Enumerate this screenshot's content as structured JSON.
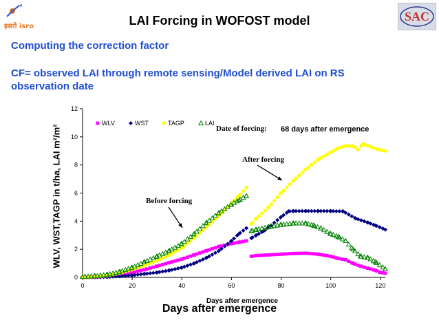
{
  "header": {
    "title": "LAI Forcing in WOFOST model",
    "left_logo_text": "इसरो isro",
    "right_logo_icon": "sac-logo-icon"
  },
  "body": {
    "subtitle": "Computing the correction factor",
    "formula": "CF= observed LAI through remote sensing/Model derived LAI on RS observation date"
  },
  "chart_data": {
    "type": "scatter",
    "xlim": [
      0,
      122
    ],
    "ylim": [
      0,
      12
    ],
    "x_ticks": [
      "0",
      "20",
      "40",
      "60",
      "80",
      "100",
      "120"
    ],
    "y_ticks": [
      "0",
      "2",
      "4",
      "6",
      "8",
      "10",
      "12"
    ],
    "xlabel": "Days after emergence",
    "xlabel_large": "Days after emergence",
    "ylabel": "WLV, WST,TAGP in t/ha, LAI m²/m²",
    "grid": false,
    "legend_placement": "top-left",
    "annotations": {
      "date_of_forcing_label": "Date of forcing:",
      "date_of_forcing_value": "68 days after emergence",
      "after_forcing": "After forcing",
      "before_forcing": "Before forcing"
    },
    "series": [
      {
        "name": "WLV",
        "marker": "square",
        "color": "#ff00ff",
        "x": [
          0,
          5,
          10,
          15,
          20,
          25,
          30,
          35,
          40,
          45,
          50,
          55,
          60,
          63,
          66,
          68,
          70,
          75,
          80,
          85,
          90,
          95,
          100,
          103,
          106,
          109,
          112,
          115,
          118,
          120,
          122
        ],
        "y": [
          0,
          0.03,
          0.08,
          0.2,
          0.35,
          0.55,
          0.8,
          1.05,
          1.3,
          1.6,
          1.9,
          2.2,
          2.4,
          2.5,
          2.6,
          1.5,
          1.55,
          1.6,
          1.65,
          1.7,
          1.72,
          1.65,
          1.5,
          1.35,
          1.25,
          1.0,
          0.8,
          0.65,
          0.5,
          0.35,
          0.3
        ]
      },
      {
        "name": "WST",
        "marker": "diamond",
        "color": "#000080",
        "x": [
          0,
          5,
          10,
          15,
          20,
          25,
          30,
          35,
          40,
          45,
          50,
          55,
          60,
          63,
          66,
          68,
          70,
          73,
          76,
          80,
          83,
          85,
          90,
          95,
          100,
          105,
          110,
          115,
          118,
          122
        ],
        "y": [
          0,
          0.01,
          0.03,
          0.08,
          0.15,
          0.25,
          0.35,
          0.5,
          0.7,
          1.0,
          1.4,
          1.9,
          2.6,
          3.1,
          3.5,
          2.8,
          3.0,
          3.3,
          3.7,
          4.3,
          4.7,
          4.72,
          4.72,
          4.72,
          4.72,
          4.7,
          4.2,
          3.9,
          3.7,
          3.4
        ]
      },
      {
        "name": "TAGP",
        "marker": "circle",
        "color": "#ffff00",
        "x": [
          0,
          5,
          10,
          15,
          20,
          25,
          30,
          35,
          40,
          45,
          50,
          55,
          60,
          63,
          66,
          68,
          70,
          75,
          80,
          85,
          90,
          95,
          100,
          103,
          106,
          109,
          111,
          113,
          116,
          119,
          122
        ],
        "y": [
          0,
          0.05,
          0.12,
          0.3,
          0.55,
          0.85,
          1.2,
          1.6,
          2.1,
          2.8,
          3.6,
          4.4,
          5.3,
          5.8,
          6.4,
          3.8,
          4.2,
          5.0,
          6.0,
          6.9,
          7.7,
          8.4,
          8.9,
          9.2,
          9.35,
          9.35,
          9.1,
          9.5,
          9.3,
          9.1,
          9.0
        ]
      },
      {
        "name": "LAI",
        "marker": "triangle",
        "color": "#008000",
        "x": [
          0,
          5,
          10,
          15,
          20,
          25,
          30,
          35,
          40,
          45,
          50,
          55,
          60,
          63,
          66,
          68,
          70,
          75,
          80,
          85,
          90,
          93,
          96,
          100,
          103,
          106,
          109,
          112,
          115,
          118,
          122
        ],
        "y": [
          0.05,
          0.1,
          0.2,
          0.4,
          0.7,
          1.1,
          1.5,
          1.9,
          2.4,
          3.1,
          3.9,
          4.6,
          5.2,
          5.5,
          5.8,
          3.3,
          3.4,
          3.6,
          3.75,
          3.85,
          3.85,
          3.7,
          3.5,
          3.1,
          2.9,
          2.6,
          2.0,
          1.5,
          1.4,
          1.1,
          0.6
        ]
      }
    ]
  }
}
